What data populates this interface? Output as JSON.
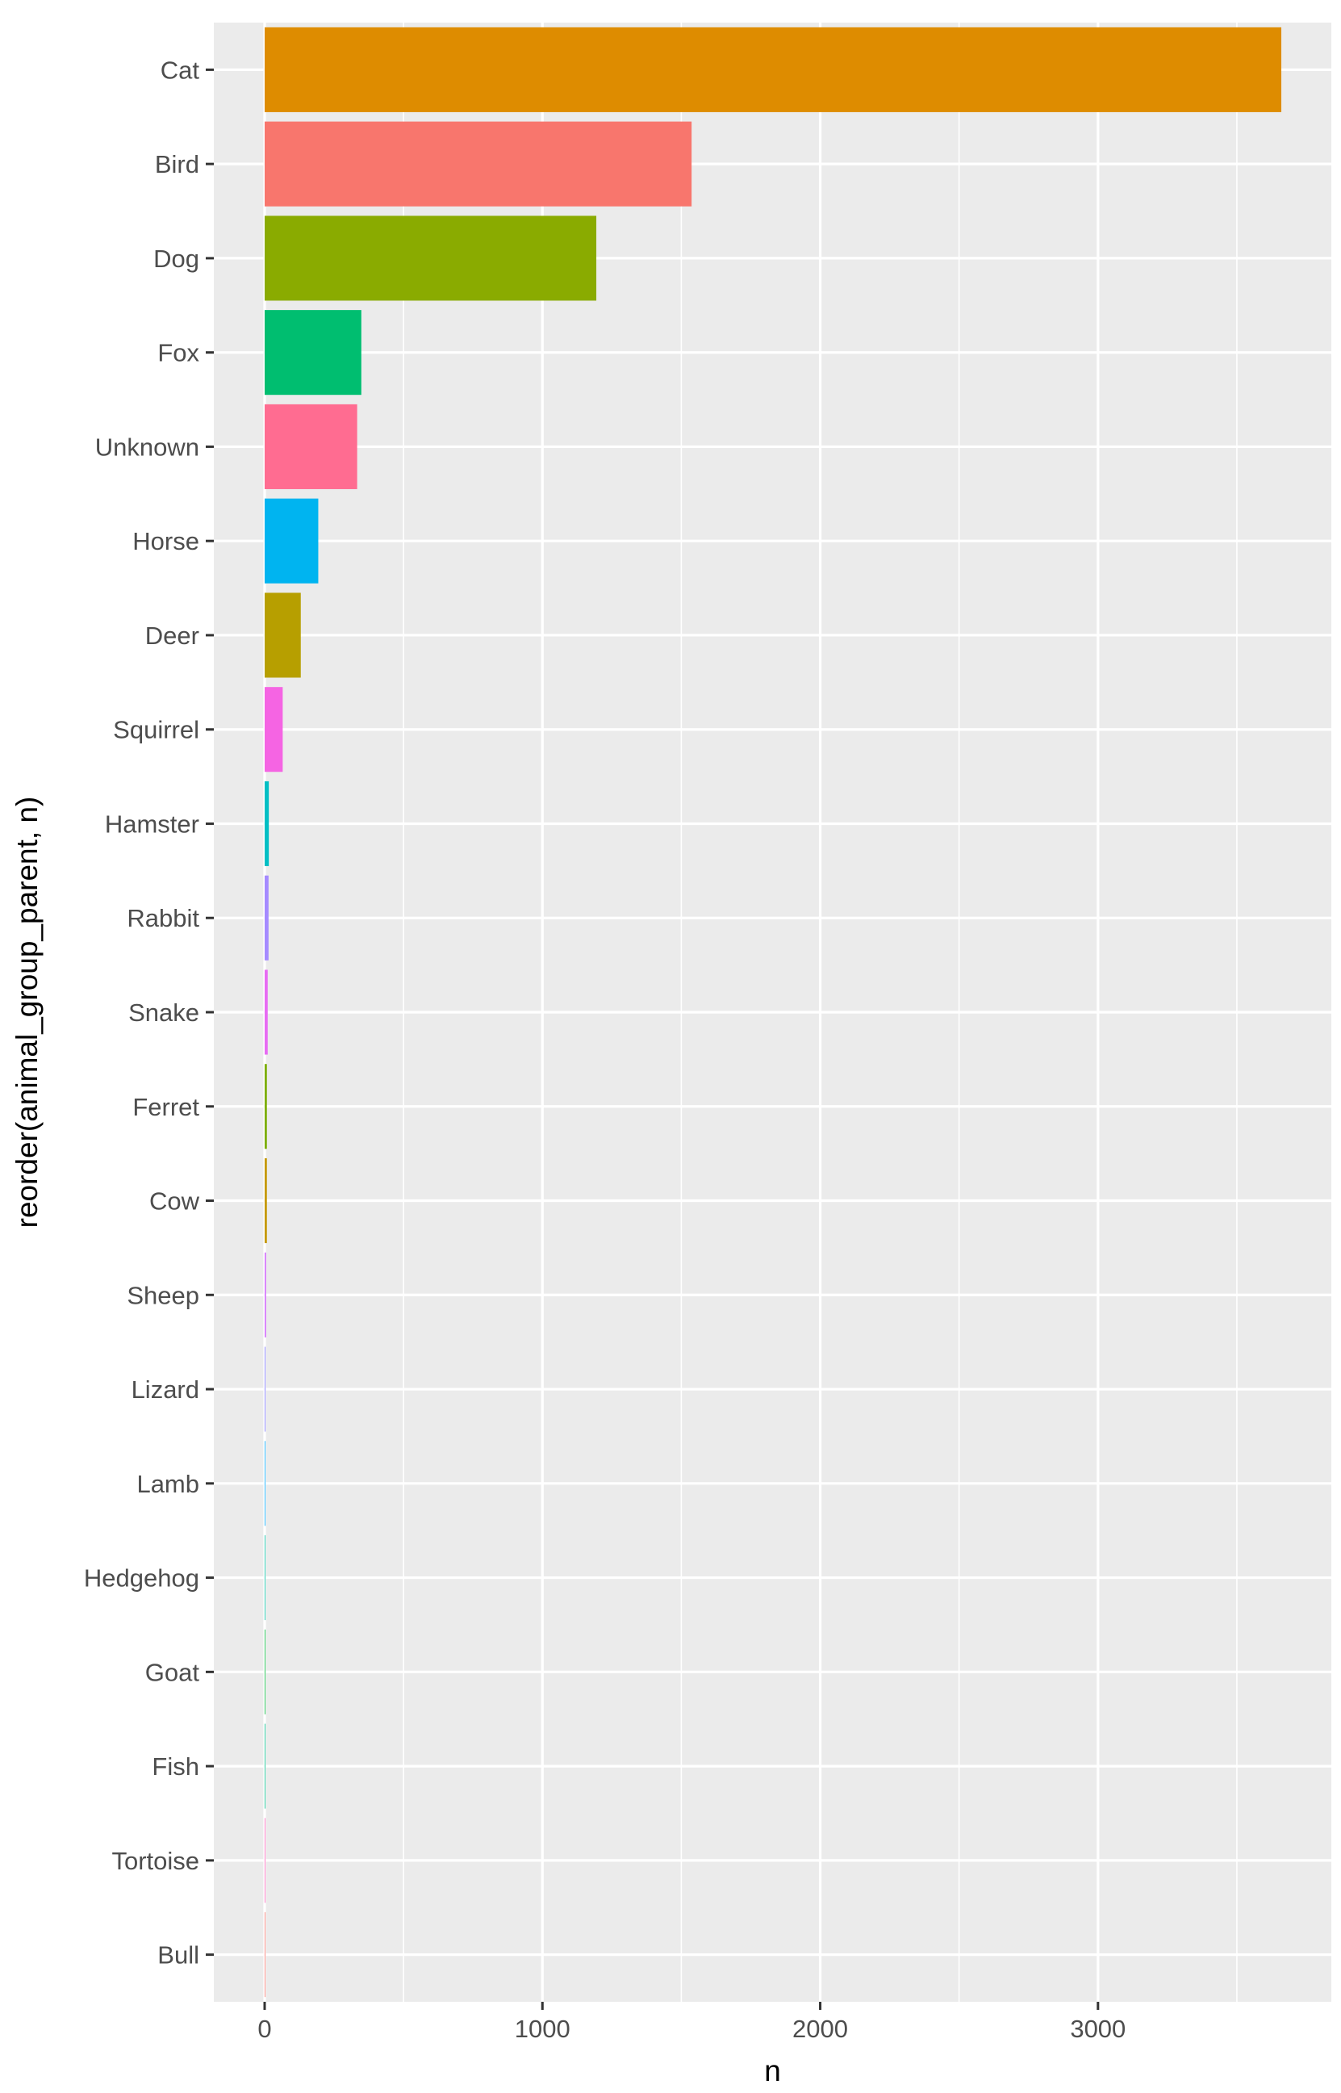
{
  "chart_data": {
    "type": "bar",
    "orientation": "horizontal",
    "xlabel": "n",
    "ylabel": "reorder(animal_group_parent, n)",
    "xlim": [
      -183,
      3840
    ],
    "x_ticks": [
      0,
      1000,
      2000,
      3000
    ],
    "x_tick_labels": [
      "0",
      "1000",
      "2000",
      "3000"
    ],
    "grid": true,
    "legend": "none",
    "categories": [
      "Cat",
      "Bird",
      "Dog",
      "Fox",
      "Unknown",
      "Horse",
      "Deer",
      "Squirrel",
      "Hamster",
      "Rabbit",
      "Snake",
      "Ferret",
      "Cow",
      "Sheep",
      "Lizard",
      "Lamb",
      "Hedgehog",
      "Goat",
      "Fish",
      "Tortoise",
      "Bull"
    ],
    "values": [
      3660,
      1537,
      1194,
      348,
      333,
      193,
      130,
      65,
      15,
      14,
      11,
      8,
      8,
      5,
      3,
      2,
      2,
      1,
      1,
      1,
      1
    ],
    "colors": [
      "#DE8C00",
      "#F8766D",
      "#8AAB00",
      "#00BE70",
      "#FF6C91",
      "#00B4F0",
      "#B79F00",
      "#F564E3",
      "#00BFC4",
      "#A58AFF",
      "#E76BF3",
      "#7CAE00",
      "#C59900",
      "#D575FE",
      "#9590FF",
      "#00A9FF",
      "#00C1A3",
      "#00BA38",
      "#00C08B",
      "#FF62BC",
      "#F8766D"
    ]
  }
}
